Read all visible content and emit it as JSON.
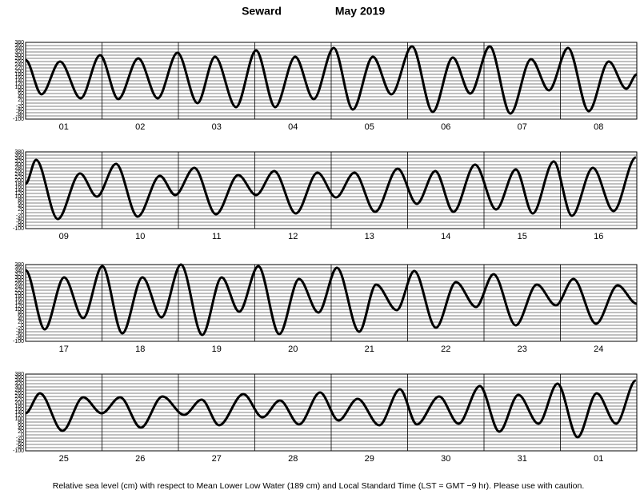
{
  "title": "Seward",
  "period": "May 2019",
  "note": "Relative sea level (cm) with respect to Mean Lower Low Water (189 cm) and Local Standard Time (LST = GMT −9 hr). Please use with caution.",
  "chart_data": [
    {
      "type": "line",
      "color": "#000000",
      "grid": true,
      "xlim": [
        0,
        192
      ],
      "ylim": [
        -100,
        380
      ],
      "yticks": [
        380,
        360,
        340,
        320,
        300,
        280,
        260,
        240,
        220,
        200,
        180,
        160,
        140,
        120,
        100,
        80,
        60,
        40,
        20,
        0,
        -20,
        -40,
        -60,
        -80,
        -100
      ],
      "categories": [
        "01",
        "02",
        "03",
        "04",
        "05",
        "06",
        "07",
        "08"
      ],
      "x": [
        0,
        5.0,
        10.8,
        17.3,
        23.4,
        29.1,
        35.4,
        41.5,
        47.7,
        54.0,
        59.5,
        66.1,
        72.4,
        78.4,
        84.7,
        90.5,
        96.8,
        102.8,
        109.1,
        114.9,
        121.4,
        127.9,
        134.2,
        139.7,
        145.8,
        152.3,
        158.8,
        164.4,
        170.4,
        176.9,
        183.2,
        188.7,
        192
      ],
      "values": [
        270,
        55,
        260,
        30,
        300,
        25,
        280,
        30,
        315,
        0,
        290,
        -25,
        330,
        -25,
        290,
        25,
        345,
        -40,
        290,
        55,
        355,
        -55,
        285,
        60,
        355,
        -65,
        275,
        80,
        345,
        -50,
        260,
        90,
        180
      ]
    },
    {
      "type": "line",
      "color": "#000000",
      "grid": true,
      "xlim": [
        0,
        192
      ],
      "ylim": [
        -100,
        380
      ],
      "yticks": [
        380,
        360,
        340,
        320,
        300,
        280,
        260,
        240,
        220,
        200,
        180,
        160,
        140,
        120,
        100,
        80,
        60,
        40,
        20,
        0,
        -20,
        -40,
        -60,
        -80,
        -100
      ],
      "categories": [
        "09",
        "10",
        "11",
        "12",
        "13",
        "14",
        "15",
        "16"
      ],
      "x": [
        0,
        3.3,
        10.1,
        17.1,
        22.4,
        28.4,
        35.2,
        42.2,
        47.0,
        53.0,
        59.8,
        66.8,
        72.4,
        78.1,
        84.9,
        91.7,
        97.5,
        103.3,
        109.8,
        116.9,
        122.9,
        128.7,
        134.4,
        141.2,
        147.8,
        154.0,
        159.3,
        165.9,
        171.6,
        178.2,
        184.7,
        191.7
      ],
      "values": [
        180,
        330,
        -40,
        245,
        100,
        305,
        -25,
        230,
        110,
        280,
        -10,
        235,
        110,
        260,
        -5,
        250,
        95,
        250,
        5,
        275,
        55,
        260,
        5,
        300,
        20,
        270,
        -5,
        320,
        -20,
        280,
        10,
        345
      ]
    },
    {
      "type": "line",
      "color": "#000000",
      "grid": true,
      "xlim": [
        0,
        192
      ],
      "ylim": [
        -100,
        380
      ],
      "yticks": [
        380,
        360,
        340,
        320,
        300,
        280,
        260,
        240,
        220,
        200,
        180,
        160,
        140,
        120,
        100,
        80,
        60,
        40,
        20,
        0,
        -20,
        -40,
        -60,
        -80,
        -100
      ],
      "categories": [
        "17",
        "18",
        "19",
        "20",
        "21",
        "22",
        "23",
        "24"
      ],
      "x": [
        0,
        6.0,
        12.1,
        18.1,
        24.1,
        30.4,
        36.7,
        42.7,
        48.8,
        55.5,
        61.6,
        67.1,
        73.1,
        79.7,
        85.9,
        92.0,
        97.8,
        104.8,
        110.1,
        116.6,
        122.1,
        128.9,
        135.2,
        141.5,
        147.0,
        154.0,
        160.6,
        166.6,
        172.1,
        179.2,
        186.0,
        192
      ],
      "values": [
        345,
        -25,
        300,
        45,
        370,
        -50,
        300,
        50,
        380,
        -60,
        300,
        85,
        370,
        -55,
        290,
        80,
        360,
        -40,
        255,
        95,
        340,
        -15,
        270,
        115,
        320,
        0,
        255,
        125,
        290,
        10,
        250,
        135
      ]
    },
    {
      "type": "line",
      "color": "#000000",
      "grid": true,
      "xlim": [
        0,
        192
      ],
      "ylim": [
        -100,
        380
      ],
      "yticks": [
        380,
        360,
        340,
        320,
        300,
        280,
        260,
        240,
        220,
        200,
        180,
        160,
        140,
        120,
        100,
        80,
        60,
        40,
        20,
        0,
        -20,
        -40,
        -60,
        -80,
        -100
      ],
      "categories": [
        "25",
        "26",
        "27",
        "28",
        "29",
        "30",
        "31",
        "01"
      ],
      "x": [
        0,
        4.5,
        11.6,
        18.1,
        23.9,
        29.7,
        36.2,
        43.0,
        49.8,
        55.3,
        60.8,
        68.4,
        74.4,
        79.9,
        85.9,
        92.5,
        98.3,
        104.3,
        111.1,
        117.6,
        122.9,
        129.9,
        136.0,
        142.7,
        148.8,
        154.8,
        161.1,
        167.1,
        173.4,
        179.4,
        185.5,
        191.7
      ],
      "values": [
        135,
        260,
        25,
        235,
        135,
        235,
        45,
        240,
        125,
        220,
        60,
        255,
        110,
        215,
        65,
        265,
        90,
        225,
        60,
        285,
        65,
        240,
        70,
        305,
        20,
        250,
        70,
        320,
        -15,
        260,
        70,
        340
      ]
    }
  ]
}
